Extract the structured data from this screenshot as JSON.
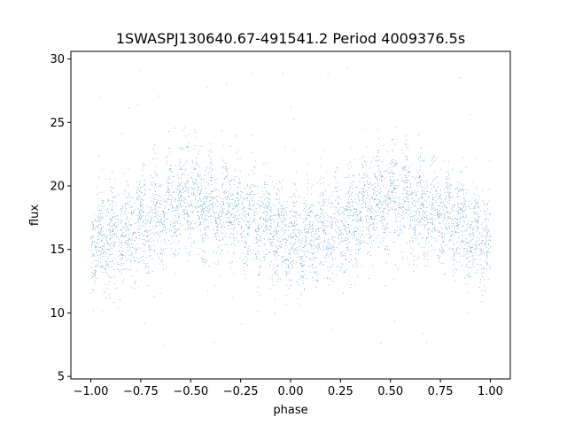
{
  "chart_data": {
    "type": "scatter",
    "title": "1SWASPJ130640.67-491541.2 Period 4009376.5s",
    "xlabel": "phase",
    "ylabel": "flux",
    "xlim": [
      -1.1,
      1.1
    ],
    "ylim": [
      4.8,
      30.6
    ],
    "xticks": [
      -1.0,
      -0.75,
      -0.5,
      -0.25,
      0.0,
      0.25,
      0.5,
      0.75,
      1.0
    ],
    "xtick_labels": [
      "−1.00",
      "−0.75",
      "−0.50",
      "−0.25",
      "0.00",
      "0.25",
      "0.50",
      "0.75",
      "1.00"
    ],
    "yticks": [
      5,
      10,
      15,
      20,
      25,
      30
    ],
    "ytick_labels": [
      "5",
      "10",
      "15",
      "20",
      "25",
      "30"
    ],
    "grid": false,
    "legend": "none",
    "point_color": "#1f77b4",
    "series": [
      {
        "phase_range": [
          -1.0,
          1.0
        ],
        "point_count": 12000,
        "trend": [
          {
            "x": -1.0,
            "y": 15.5
          },
          {
            "x": -0.9,
            "y": 16.0
          },
          {
            "x": -0.8,
            "y": 16.5
          },
          {
            "x": -0.7,
            "y": 17.5
          },
          {
            "x": -0.6,
            "y": 18.5
          },
          {
            "x": -0.5,
            "y": 19.0
          },
          {
            "x": -0.4,
            "y": 18.5
          },
          {
            "x": -0.3,
            "y": 18.0
          },
          {
            "x": -0.2,
            "y": 17.5
          },
          {
            "x": -0.1,
            "y": 16.5
          },
          {
            "x": 0.0,
            "y": 15.5
          },
          {
            "x": 0.1,
            "y": 16.0
          },
          {
            "x": 0.2,
            "y": 16.5
          },
          {
            "x": 0.3,
            "y": 17.5
          },
          {
            "x": 0.4,
            "y": 18.5
          },
          {
            "x": 0.5,
            "y": 19.0
          },
          {
            "x": 0.6,
            "y": 18.5
          },
          {
            "x": 0.7,
            "y": 18.0
          },
          {
            "x": 0.8,
            "y": 17.5
          },
          {
            "x": 0.9,
            "y": 16.5
          },
          {
            "x": 1.0,
            "y": 15.5
          }
        ],
        "scatter_amplitude": 2.5,
        "outlier_range": [
          6,
          29.5
        ]
      }
    ]
  }
}
